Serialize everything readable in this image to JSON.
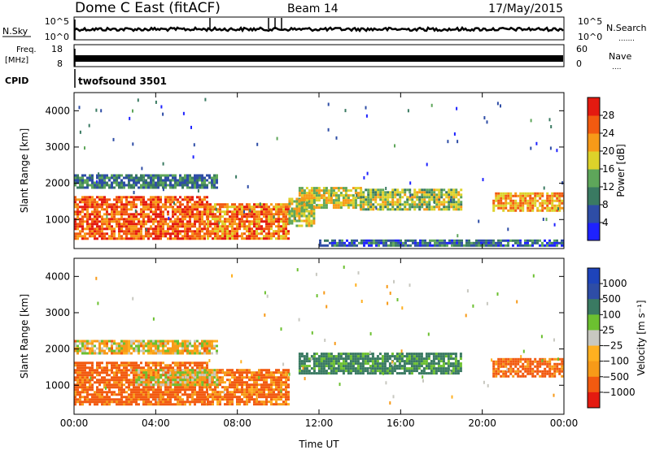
{
  "header": {
    "station": "Dome C East (fitACF)",
    "beam": "Beam 14",
    "date": "17/May/2015"
  },
  "status_panels": {
    "nsky": {
      "label": "N.Sky",
      "ticks": [
        "10^5",
        "10^0"
      ]
    },
    "nsearch": {
      "label": "N.Search",
      "ticks": [
        "10^5",
        "10^0"
      ]
    },
    "freq": {
      "label_line1": "Freq.",
      "label_line2": "[MHz]",
      "ticks": [
        "18",
        "8"
      ]
    },
    "nave": {
      "label": "Nave",
      "ticks": [
        "60",
        "0"
      ]
    },
    "cpid": {
      "label": "CPID",
      "value": "twofsound 3501"
    }
  },
  "colors": {
    "power_scale": [
      "#1e22ff",
      "#2e4da6",
      "#3a7a62",
      "#5ea65a",
      "#ddd22a",
      "#f79a18",
      "#f25a10",
      "#e41a10"
    ],
    "velocity_scale": [
      "#e41a10",
      "#f25a10",
      "#f79a18",
      "#ffb020",
      "#c8c8c0",
      "#6cc030",
      "#3a7a62",
      "#2e4da6",
      "#1e44bb"
    ]
  },
  "chart_data": [
    {
      "type": "heatmap",
      "quantity": "power",
      "x": {
        "label": "",
        "range": [
          0,
          24
        ],
        "ticks": [
          "00:00",
          "04:00",
          "08:00",
          "12:00",
          "16:00",
          "20:00",
          "00:00"
        ]
      },
      "y": {
        "label": "Slant Range [km]",
        "range": [
          200,
          4500
        ],
        "ticks": [
          "1000",
          "2000",
          "3000",
          "4000"
        ]
      },
      "colorbar": {
        "label": "Power [dB]",
        "ticks": [
          "4",
          "8",
          "12",
          "16",
          "20",
          "24",
          "28"
        ],
        "range": [
          0,
          32
        ]
      },
      "echo_regions": [
        {
          "t": [
            0.0,
            6.5
          ],
          "range_km": [
            450,
            1650
          ],
          "power_db": 26
        },
        {
          "t": [
            6.5,
            10.5
          ],
          "range_km": [
            500,
            1450
          ],
          "power_db": 24
        },
        {
          "t": [
            10.5,
            11.8
          ],
          "range_km": [
            800,
            1600
          ],
          "power_db": 18
        },
        {
          "t": [
            0.0,
            7.0
          ],
          "range_km": [
            1850,
            2250
          ],
          "power_db": 10
        },
        {
          "t": [
            11.0,
            14.0
          ],
          "range_km": [
            1350,
            1900
          ],
          "power_db": 18
        },
        {
          "t": [
            14.0,
            19.0
          ],
          "range_km": [
            1250,
            1850
          ],
          "power_db": 16
        },
        {
          "t": [
            20.5,
            24.0
          ],
          "range_km": [
            1250,
            1750
          ],
          "power_db": 22
        },
        {
          "t": [
            12.0,
            24.0
          ],
          "range_km": [
            250,
            450
          ],
          "power_db": 8
        }
      ]
    },
    {
      "type": "heatmap",
      "quantity": "velocity",
      "x": {
        "label": "Time UT",
        "range": [
          0,
          24
        ],
        "ticks": [
          "00:00",
          "04:00",
          "08:00",
          "12:00",
          "16:00",
          "20:00",
          "00:00"
        ]
      },
      "y": {
        "label": "Slant Range [km]",
        "range": [
          200,
          4500
        ],
        "ticks": [
          "1000",
          "2000",
          "3000",
          "4000"
        ]
      },
      "colorbar": {
        "label": "Velocity [m s⁻¹]",
        "ticks": [
          "1000",
          "500",
          "100",
          "25",
          "−25",
          "−100",
          "−500",
          "−1000"
        ]
      },
      "echo_regions": [
        {
          "t": [
            0.0,
            6.5
          ],
          "range_km": [
            450,
            1650
          ],
          "velocity": -150
        },
        {
          "t": [
            6.5,
            10.5
          ],
          "range_km": [
            500,
            1450
          ],
          "velocity": -120
        },
        {
          "t": [
            3.0,
            7.0
          ],
          "range_km": [
            1000,
            1450
          ],
          "velocity": 0
        },
        {
          "t": [
            0.0,
            7.0
          ],
          "range_km": [
            1850,
            2250
          ],
          "velocity": -20
        },
        {
          "t": [
            11.0,
            19.0
          ],
          "range_km": [
            1300,
            1900
          ],
          "velocity": 150
        },
        {
          "t": [
            20.5,
            24.0
          ],
          "range_km": [
            1250,
            1750
          ],
          "velocity": -150
        }
      ]
    }
  ]
}
